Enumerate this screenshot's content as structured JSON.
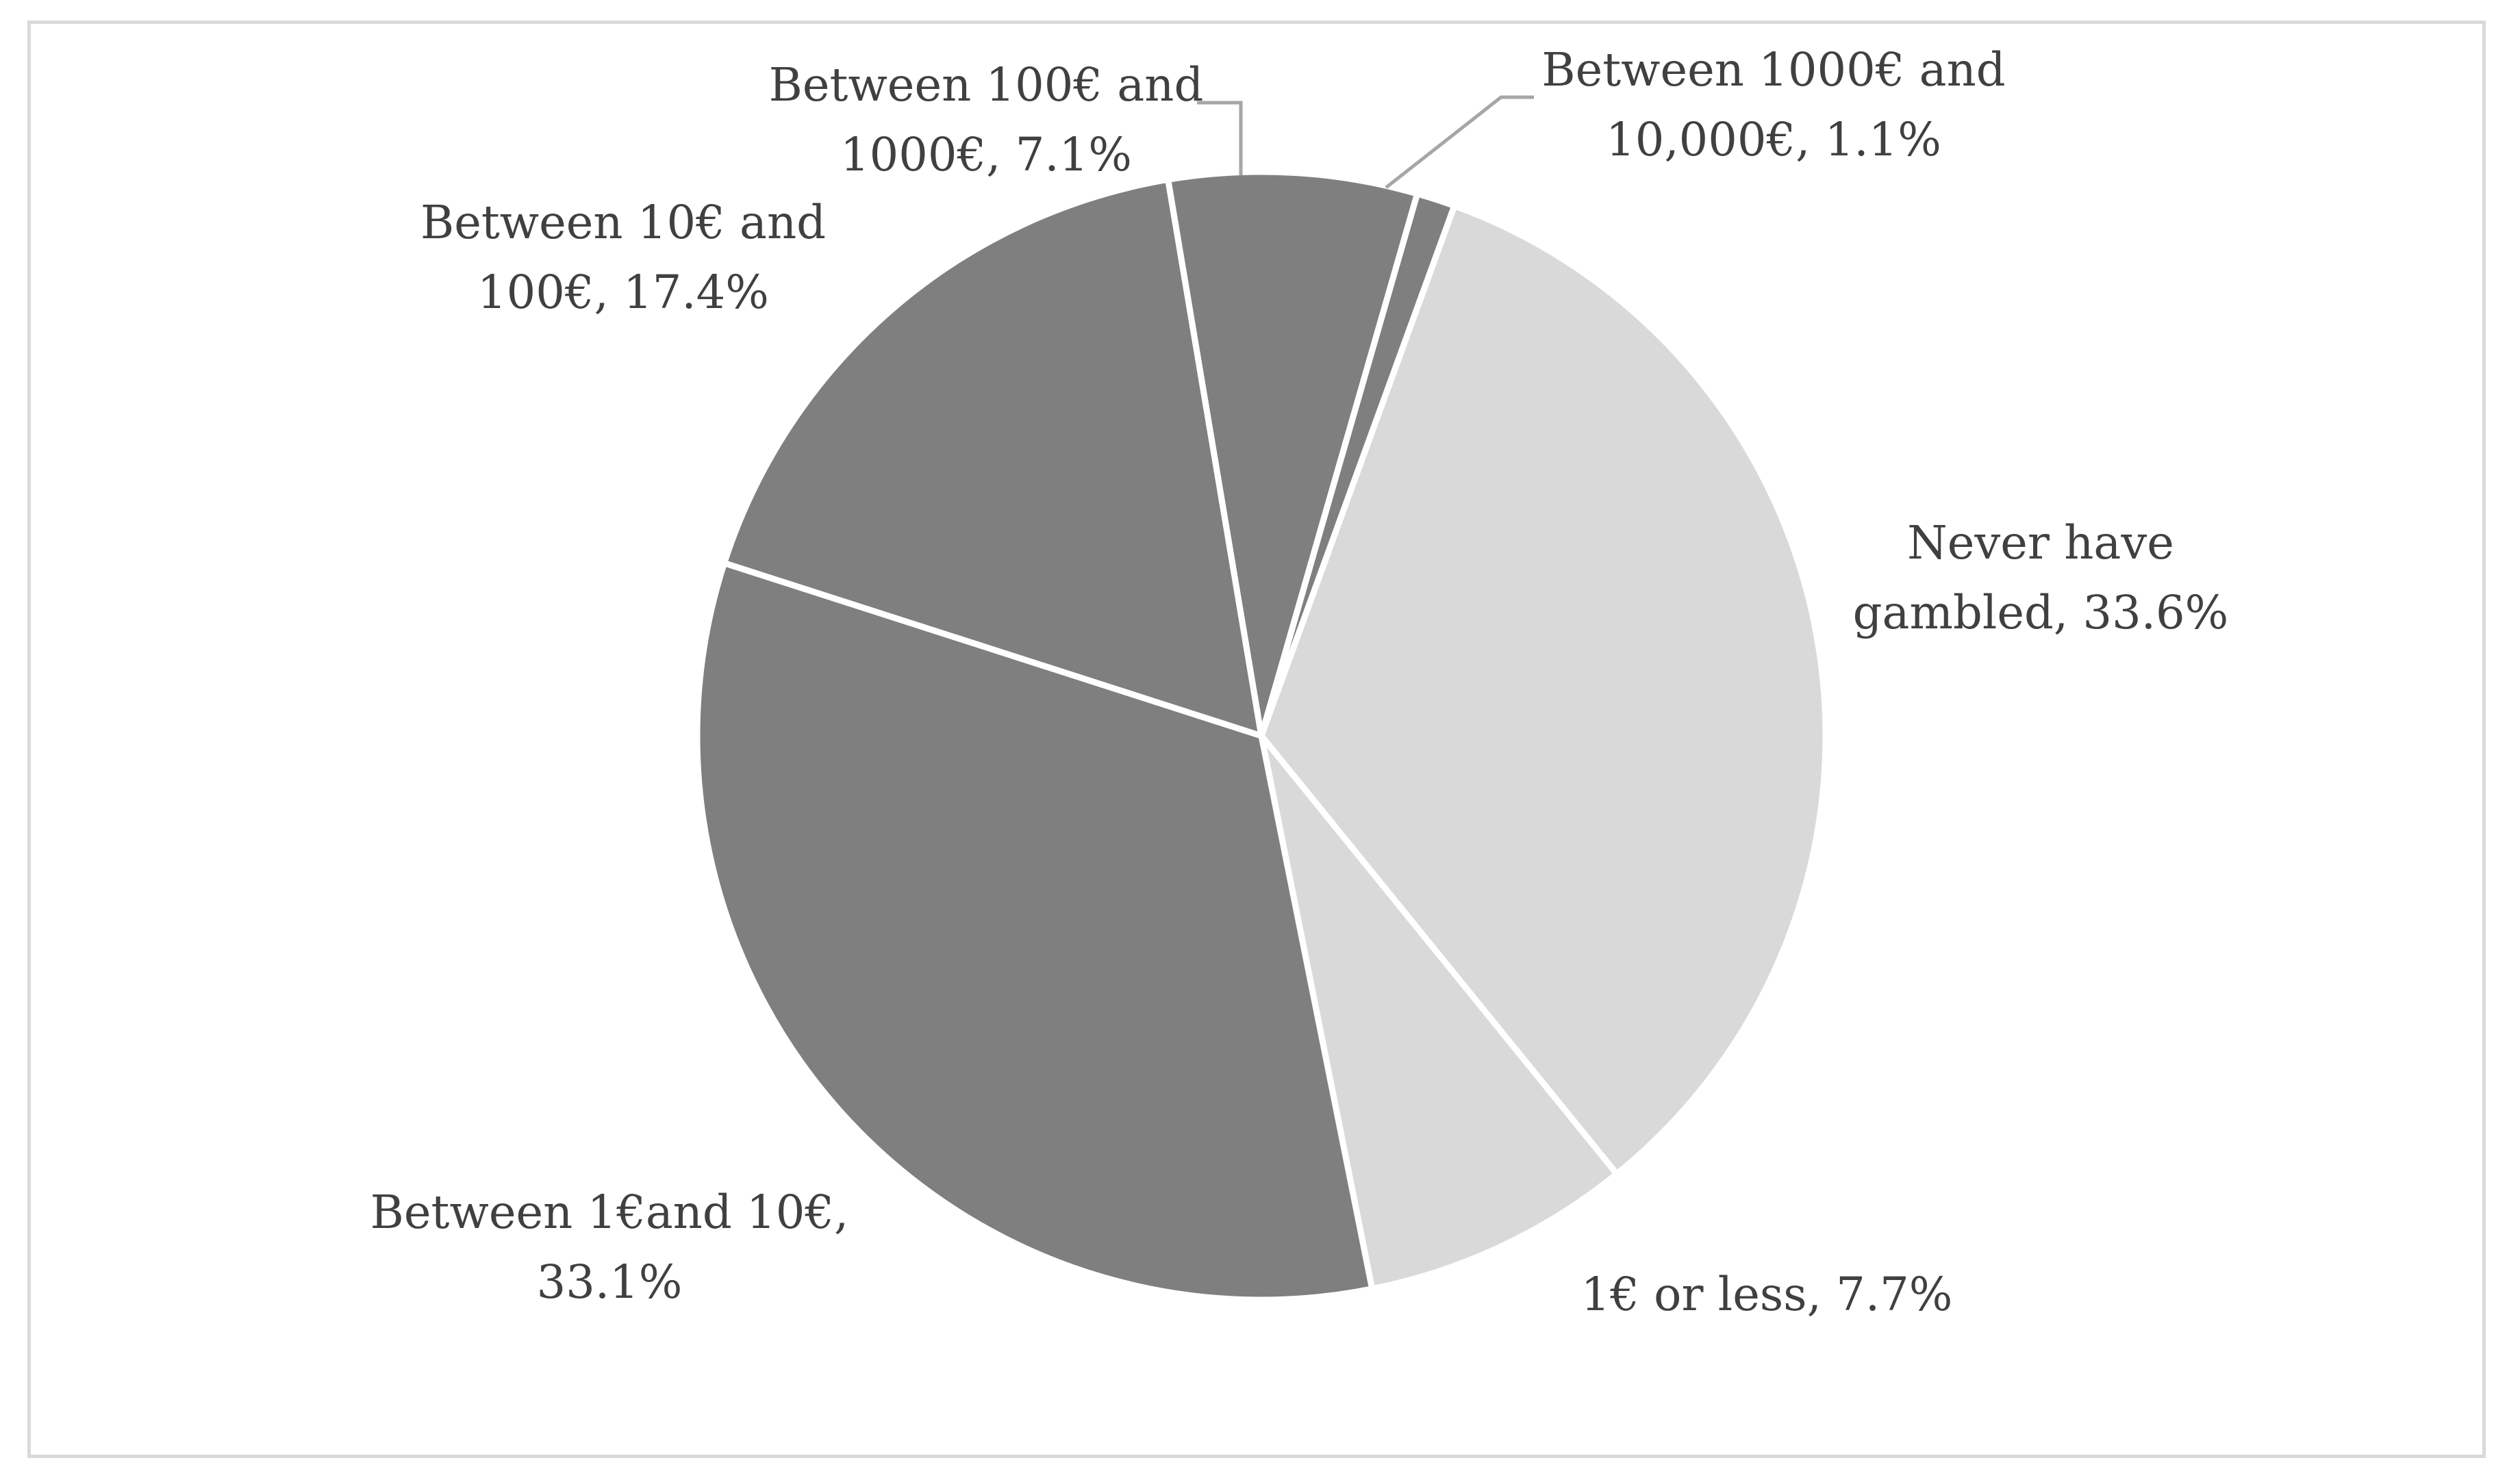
{
  "chart_data": {
    "type": "pie",
    "title": "",
    "slices": [
      {
        "name": "Never have gambled",
        "value": 33.6,
        "color": "#d9d9d9",
        "label_lines": [
          "Never have",
          "gambled, 33.6%"
        ]
      },
      {
        "name": "1€ or less",
        "value": 7.7,
        "color": "#d9d9d9",
        "label_lines": [
          "1€ or less, 7.7%"
        ]
      },
      {
        "name": "Between 1€and 10€",
        "value": 33.1,
        "color": "#7f7f7f",
        "label_lines": [
          "Between 1€and 10€,",
          "33.1%"
        ]
      },
      {
        "name": "Between 10€ and 100€",
        "value": 17.4,
        "color": "#7f7f7f",
        "label_lines": [
          "Between 10€ and",
          "100€, 17.4%"
        ]
      },
      {
        "name": "Between 100€ and 1000€",
        "value": 7.1,
        "color": "#7f7f7f",
        "label_lines": [
          "Between 100€ and",
          "1000€, 7.1%"
        ]
      },
      {
        "name": "Between 1000€ and 10,000€",
        "value": 1.1,
        "color": "#7f7f7f",
        "label_lines": [
          "Between 1000€ and",
          "10,000€, 1.1%"
        ]
      }
    ],
    "legend": "none",
    "label_color": "#404040",
    "separator_color": "#ffffff",
    "leader_line_color": "#a6a6a6"
  }
}
